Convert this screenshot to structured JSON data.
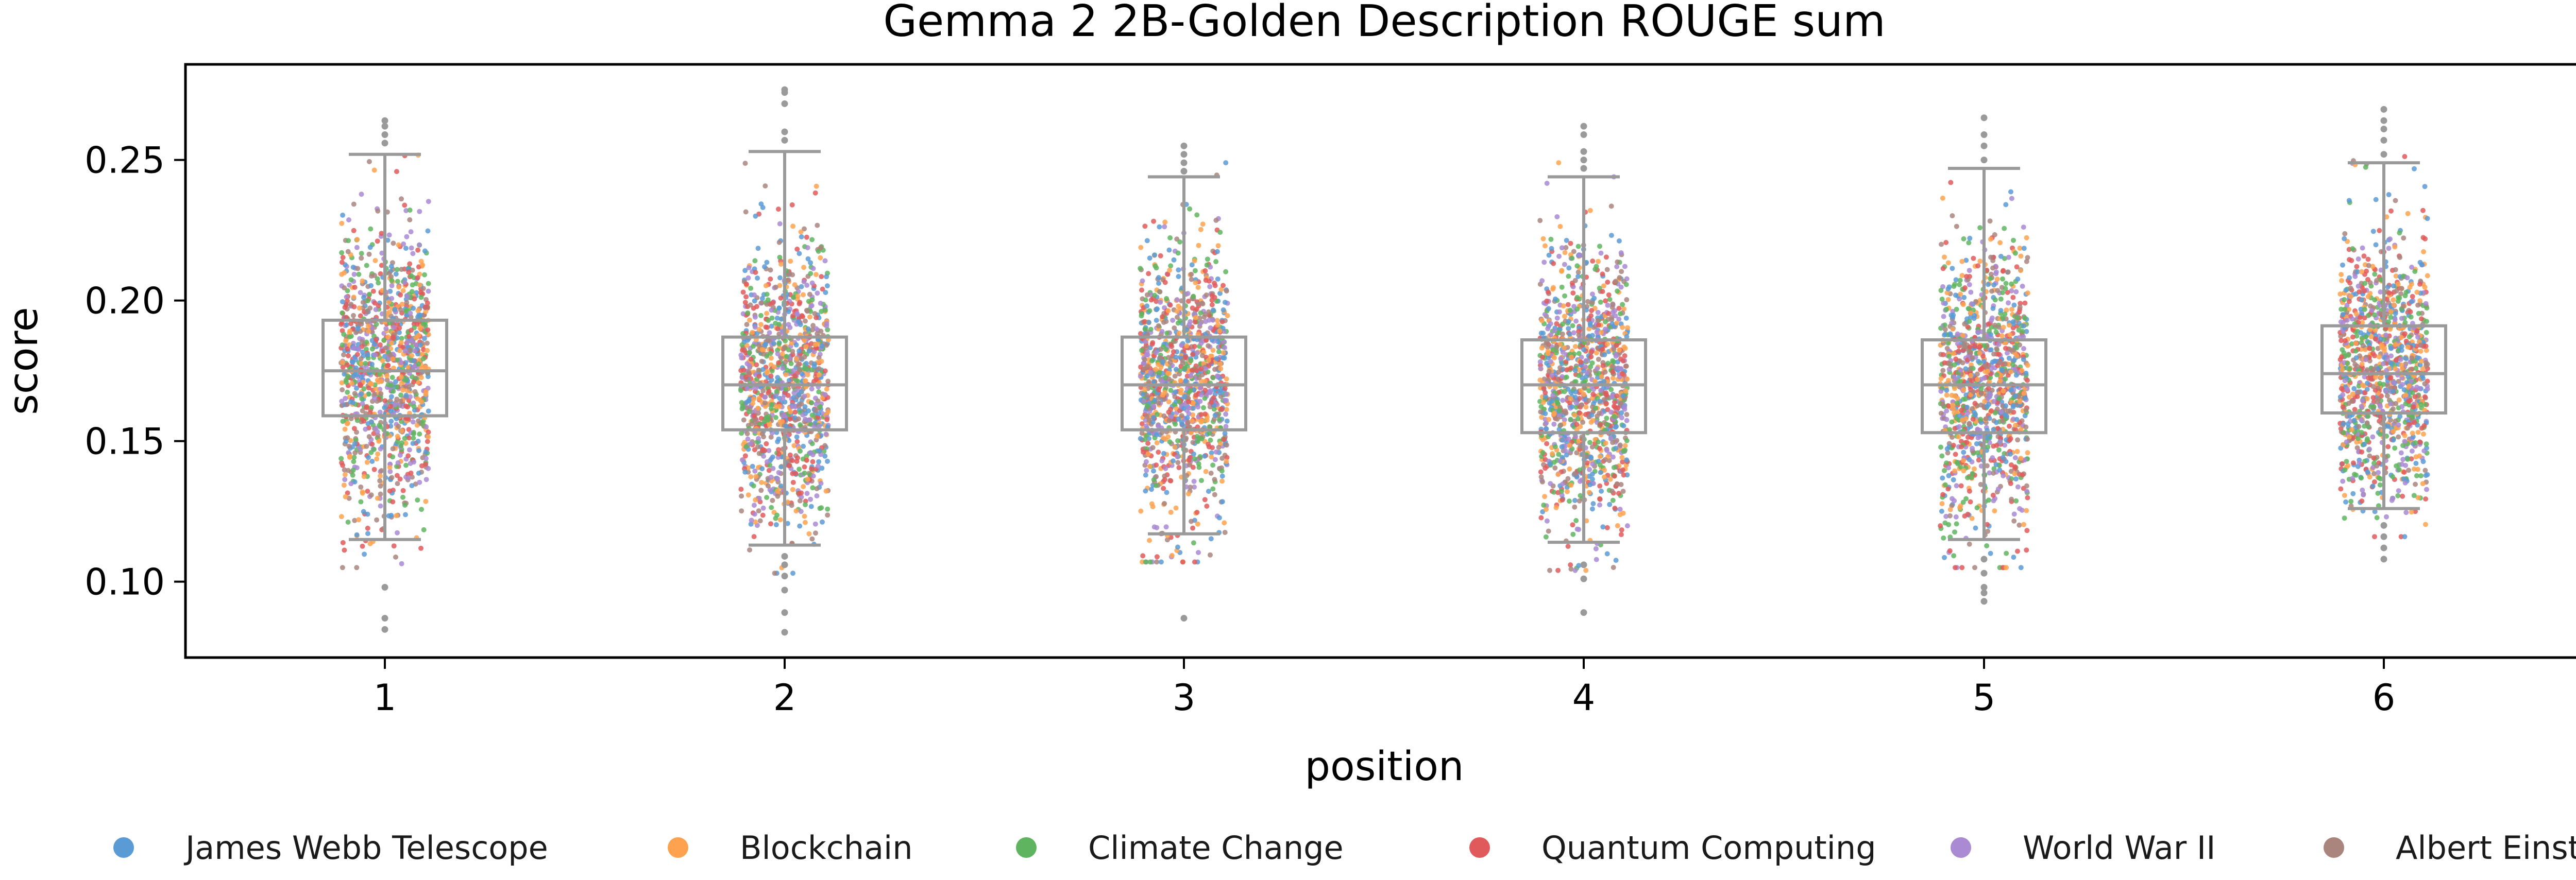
{
  "chart_data": {
    "type": "box+strip",
    "title": "Gemma 2 2B-Golden Description ROUGE sum",
    "xlabel": "position",
    "ylabel": "score",
    "categories": [
      "1",
      "2",
      "3",
      "4",
      "5",
      "6"
    ],
    "ylim": [
      0.073,
      0.284
    ],
    "yticks": [
      0.1,
      0.15,
      0.2,
      0.25
    ],
    "ytick_labels": [
      "0.10",
      "0.15",
      "0.20",
      "0.25"
    ],
    "grid": false,
    "legend_position": "bottom",
    "series": [
      {
        "name": "James Webb Telescope",
        "color": "#5b9bd5"
      },
      {
        "name": "Blockchain",
        "color": "#ffa24f"
      },
      {
        "name": "Climate Change",
        "color": "#5fb55f"
      },
      {
        "name": "Quantum Computing",
        "color": "#e05a5b"
      },
      {
        "name": "World War II",
        "color": "#a98ad3"
      },
      {
        "name": "Albert Einstein",
        "color": "#a9857e"
      }
    ],
    "boxes": [
      {
        "position": "1",
        "whisker_low": 0.115,
        "q1": 0.159,
        "median": 0.175,
        "q3": 0.193,
        "whisker_high": 0.252,
        "outliers": [
          0.083,
          0.087,
          0.098,
          0.256,
          0.259,
          0.262,
          0.264
        ]
      },
      {
        "position": "2",
        "whisker_low": 0.113,
        "q1": 0.154,
        "median": 0.17,
        "q3": 0.187,
        "whisker_high": 0.253,
        "outliers": [
          0.082,
          0.089,
          0.097,
          0.102,
          0.106,
          0.109,
          0.257,
          0.26,
          0.27,
          0.274,
          0.275
        ]
      },
      {
        "position": "3",
        "whisker_low": 0.117,
        "q1": 0.154,
        "median": 0.17,
        "q3": 0.187,
        "whisker_high": 0.244,
        "outliers": [
          0.087,
          0.246,
          0.249,
          0.252,
          0.255
        ]
      },
      {
        "position": "4",
        "whisker_low": 0.114,
        "q1": 0.153,
        "median": 0.17,
        "q3": 0.186,
        "whisker_high": 0.244,
        "outliers": [
          0.089,
          0.101,
          0.106,
          0.247,
          0.25,
          0.253,
          0.259,
          0.262
        ]
      },
      {
        "position": "5",
        "whisker_low": 0.115,
        "q1": 0.153,
        "median": 0.17,
        "q3": 0.186,
        "whisker_high": 0.247,
        "outliers": [
          0.093,
          0.096,
          0.098,
          0.103,
          0.108,
          0.25,
          0.255,
          0.259,
          0.265
        ]
      },
      {
        "position": "6",
        "whisker_low": 0.126,
        "q1": 0.16,
        "median": 0.174,
        "q3": 0.191,
        "whisker_high": 0.249,
        "outliers": [
          0.108,
          0.112,
          0.116,
          0.12,
          0.252,
          0.257,
          0.261,
          0.264,
          0.268
        ]
      }
    ]
  }
}
